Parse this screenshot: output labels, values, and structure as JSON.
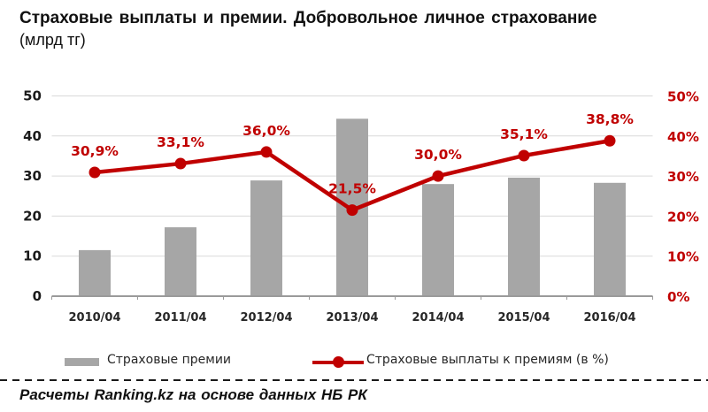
{
  "title": {
    "line1": "Страховые выплаты и премии. Добровольное личное страхование",
    "line2": "(млрд тг)"
  },
  "chart_data": {
    "type": "bar+line combo",
    "categories": [
      "2010/04",
      "2011/04",
      "2012/04",
      "2013/04",
      "2014/04",
      "2015/04",
      "2016/04"
    ],
    "series": [
      {
        "name": "Страховые премии",
        "type": "bar",
        "axis": "left",
        "values": [
          11.5,
          17.2,
          28.9,
          44.3,
          28.0,
          29.6,
          28.3
        ]
      },
      {
        "name": "Страховые выплаты к премиям (в %)",
        "type": "line",
        "axis": "right",
        "values": [
          30.9,
          33.1,
          36.0,
          21.5,
          30.0,
          35.1,
          38.8
        ],
        "point_labels": [
          "30,9%",
          "33,1%",
          "36,0%",
          "21,5%",
          "30,0%",
          "35,1%",
          "38,8%"
        ]
      }
    ],
    "left_axis": {
      "ticks": [
        "0",
        "10",
        "20",
        "30",
        "40",
        "50"
      ],
      "min": 0,
      "max": 50
    },
    "right_axis": {
      "ticks": [
        "0%",
        "10%",
        "20%",
        "30%",
        "40%",
        "50%"
      ],
      "min": 0,
      "max": 50
    },
    "grid": true,
    "legend_position": "bottom"
  },
  "legend": {
    "bar_label": "Страховые премии",
    "line_label": "Страховые выплаты к премиям (в %)"
  },
  "footer": {
    "text": "Расчеты Ranking.kz на основе данных НБ РК"
  },
  "colors": {
    "bar": "#a6a6a6",
    "line": "#c00000",
    "data_label": "#c00000",
    "right_axis_text": "#c00000",
    "left_axis_text": "#1a1a1a",
    "category_text": "#262626",
    "grid": "#d9d9d9",
    "axis_line": "#9a9a9a"
  }
}
